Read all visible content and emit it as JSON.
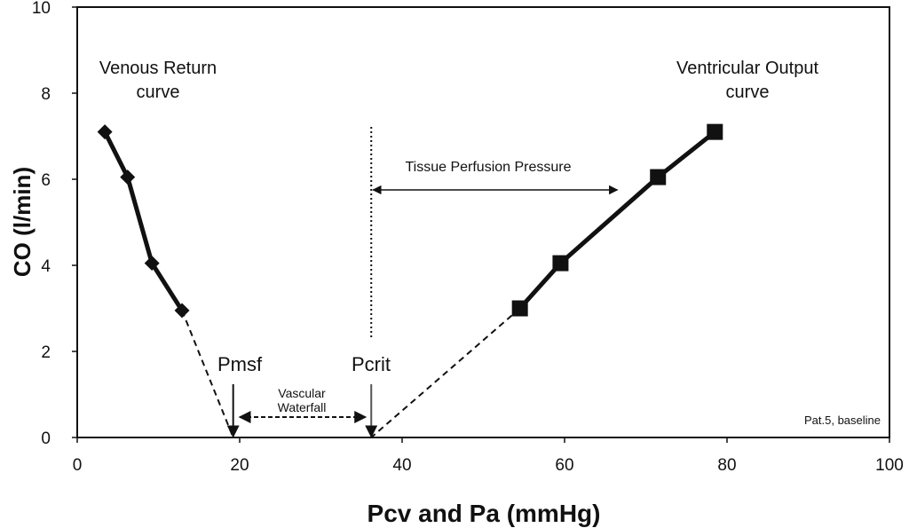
{
  "chart_data": {
    "type": "scatter",
    "title": "",
    "xlabel": "Pcv and Pa (mmHg)",
    "ylabel": "CO (l/min)",
    "xlim": [
      0,
      100
    ],
    "ylim": [
      0,
      10
    ],
    "xticks": [
      0,
      20,
      40,
      60,
      80,
      100
    ],
    "yticks": [
      0,
      2,
      4,
      6,
      8,
      10
    ],
    "grid": false,
    "series": [
      {
        "name": "Venous Return curve",
        "marker": "diamond",
        "x": [
          3.4,
          6.2,
          9.2,
          12.9
        ],
        "y": [
          7.1,
          6.05,
          4.05,
          2.95
        ],
        "extrapolated_to": [
          19.2,
          0
        ]
      },
      {
        "name": "Ventricular Output curve",
        "marker": "square",
        "x": [
          54.5,
          59.5,
          71.5,
          78.5
        ],
        "y": [
          3.0,
          4.05,
          6.05,
          7.1
        ],
        "extrapolated_to": [
          36.2,
          0
        ]
      }
    ],
    "annotations": {
      "venous_label": [
        "Venous Return",
        "curve"
      ],
      "ventricular_label": [
        "Ventricular Output",
        "curve"
      ],
      "pmsf": {
        "text": "Pmsf",
        "x": 19.2
      },
      "pcrit": {
        "text": "Pcrit",
        "x": 36.2
      },
      "waterfall": {
        "text": [
          "Vascular",
          "Waterfall"
        ],
        "from": 20,
        "to": 35.5
      },
      "tissue_perfusion": {
        "text": "Tissue Perfusion Pressure",
        "from": 36.2,
        "to": 66.5,
        "y": 6
      },
      "footnote": "Pat.5, baseline"
    }
  }
}
